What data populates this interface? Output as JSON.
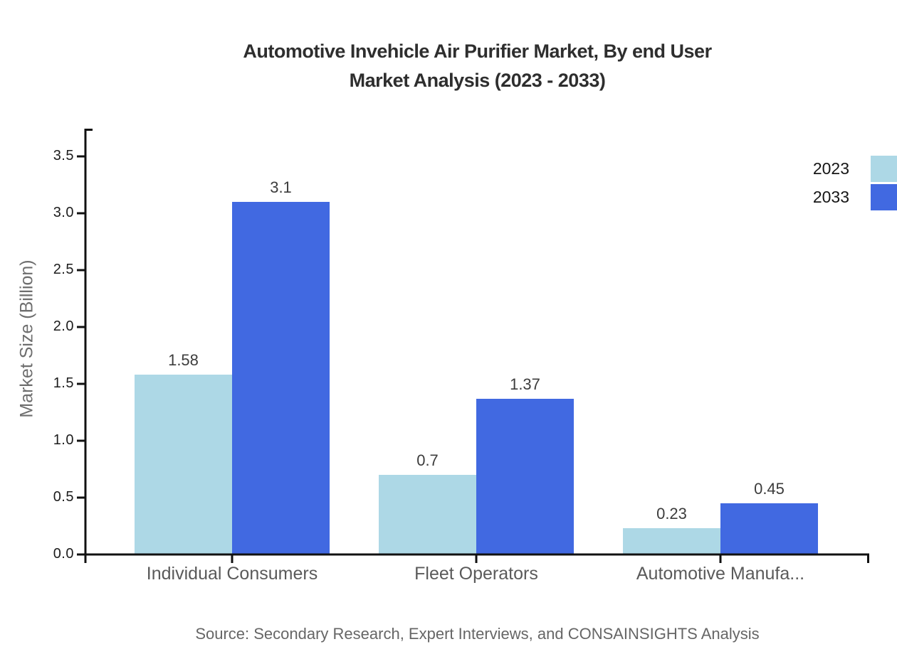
{
  "title": {
    "line1": "Automotive Invehicle Air Purifier Market, By end User",
    "line2": "Market Analysis (2023 - 2033)"
  },
  "chart_data": {
    "type": "bar",
    "title": "Automotive Invehicle Air Purifier Market, By end User Market Analysis (2023 - 2033)",
    "categories": [
      "Individual Consumers",
      "Fleet Operators",
      "Automotive Manufa..."
    ],
    "series": [
      {
        "name": "2023",
        "color": "#ADD8E6",
        "values": [
          1.58,
          0.7,
          0.23
        ],
        "value_labels": [
          "1.58",
          "0.7",
          "0.23"
        ]
      },
      {
        "name": "2033",
        "color": "#4169E1",
        "values": [
          3.1,
          1.37,
          0.45
        ],
        "value_labels": [
          "3.1",
          "1.37",
          "0.45"
        ]
      }
    ],
    "xlabel": "",
    "ylabel": "Market Size (Billion)",
    "ylim": [
      0,
      3.74
    ],
    "ytick_step": 0.5,
    "yticks": [
      "0.0",
      "0.5",
      "1.0",
      "1.5",
      "2.0",
      "2.5",
      "3.0",
      "3.5"
    ],
    "grid": false,
    "legend_position": "top-right",
    "axis_color": "#111111"
  },
  "legend": {
    "items": [
      {
        "label": "2023",
        "color": "#ADD8E6"
      },
      {
        "label": "2033",
        "color": "#4169E1"
      }
    ]
  },
  "source": "Source: Secondary Research, Expert Interviews, and CONSAINSIGHTS Analysis"
}
